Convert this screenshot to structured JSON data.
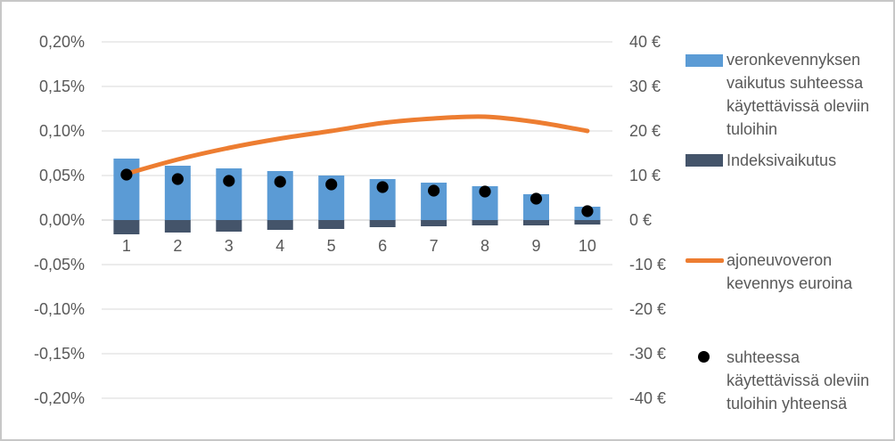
{
  "frame": {
    "background": "#ffffff",
    "border_color": "#c7c7c7"
  },
  "chart_data": {
    "type": "combo",
    "title": "",
    "grid": true,
    "legend_position": "right",
    "categories": [
      "1",
      "2",
      "3",
      "4",
      "5",
      "6",
      "7",
      "8",
      "9",
      "10"
    ],
    "series": [
      {
        "name": "veronkevennyksen vaikutus suhteessa käytettävissä oleviin tuloihin",
        "type": "bar",
        "axis": "left",
        "unit": "%",
        "color": "#5B9BD5",
        "values": [
          0.069,
          0.061,
          0.058,
          0.055,
          0.05,
          0.046,
          0.042,
          0.038,
          0.029,
          0.015
        ]
      },
      {
        "name": "Indeksivaikutus",
        "type": "bar",
        "axis": "left",
        "unit": "%",
        "color": "#44546A",
        "values": [
          -0.016,
          -0.014,
          -0.013,
          -0.011,
          -0.01,
          -0.008,
          -0.007,
          -0.006,
          -0.006,
          -0.005
        ]
      },
      {
        "name": "ajoneuvoveron kevennys euroina",
        "type": "line",
        "axis": "right",
        "unit": "€",
        "color": "#ED7D31",
        "values": [
          10.4,
          13.6,
          16.2,
          18.3,
          20.0,
          21.8,
          22.8,
          23.2,
          22.0,
          20.0
        ]
      },
      {
        "name": "suhteessa käytettävissä oleviin tuloihin yhteensä",
        "type": "scatter",
        "axis": "left",
        "unit": "%",
        "color": "#000000",
        "values": [
          0.051,
          0.046,
          0.044,
          0.043,
          0.04,
          0.037,
          0.033,
          0.032,
          0.024,
          0.01
        ]
      }
    ],
    "axes": {
      "left": {
        "range": [
          -0.2,
          0.2
        ],
        "ticks": [
          {
            "label": "0,20%",
            "value": 0.2
          },
          {
            "label": "0,15%",
            "value": 0.15
          },
          {
            "label": "0,10%",
            "value": 0.1
          },
          {
            "label": "0,05%",
            "value": 0.05
          },
          {
            "label": "0,00%",
            "value": 0.0
          },
          {
            "label": "-0,05%",
            "value": -0.05
          },
          {
            "label": "-0,10%",
            "value": -0.1
          },
          {
            "label": "-0,15%",
            "value": -0.15
          },
          {
            "label": "-0,20%",
            "value": -0.2
          }
        ]
      },
      "right": {
        "range": [
          -40,
          40
        ],
        "ticks": [
          {
            "label": "40 €",
            "value": 40
          },
          {
            "label": "30 €",
            "value": 30
          },
          {
            "label": "20 €",
            "value": 20
          },
          {
            "label": "10 €",
            "value": 10
          },
          {
            "label": "0 €",
            "value": 0
          },
          {
            "label": "-10 €",
            "value": -10
          },
          {
            "label": "-20 €",
            "value": -20
          },
          {
            "label": "-30 €",
            "value": -30
          },
          {
            "label": "-40 €",
            "value": -40
          }
        ]
      }
    },
    "colors": {
      "gridline": "#D9D9D9",
      "axis_line": "#C9C9C9",
      "tick_text": "#595959"
    }
  }
}
